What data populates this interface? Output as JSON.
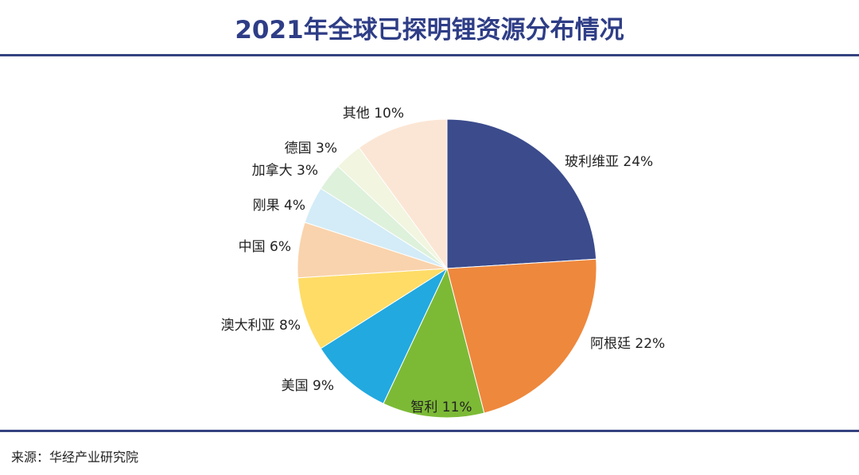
{
  "chart_data": {
    "type": "pie",
    "title": "2021年全球已探明锂资源分布情况",
    "start": "top, clockwise",
    "slices": [
      {
        "label": "玻利维亚",
        "value": 24,
        "text": "玻利维亚 24%",
        "color": "#3b4b8c"
      },
      {
        "label": "阿根廷",
        "value": 22,
        "text": "阿根廷 22%",
        "color": "#ee883d"
      },
      {
        "label": "智利",
        "value": 11,
        "text": "智利 11%",
        "color": "#7cba36"
      },
      {
        "label": "美国",
        "value": 9,
        "text": "美国 9%",
        "color": "#22a9e0"
      },
      {
        "label": "澳大利亚",
        "value": 8,
        "text": "澳大利亚 8%",
        "color": "#fedc66"
      },
      {
        "label": "中国",
        "value": 6,
        "text": "中国 6%",
        "color": "#f9d3ad"
      },
      {
        "label": "刚果",
        "value": 4,
        "text": "刚果 4%",
        "color": "#d3ecf7"
      },
      {
        "label": "加拿大",
        "value": 3,
        "text": "加拿大 3%",
        "color": "#def1db"
      },
      {
        "label": "德国",
        "value": 3,
        "text": "德国 3%",
        "color": "#f2f5df"
      },
      {
        "label": "其他",
        "value": 10,
        "text": "其他 10%",
        "color": "#fbe6d5"
      }
    ]
  },
  "source": "来源：华经产业研究院"
}
